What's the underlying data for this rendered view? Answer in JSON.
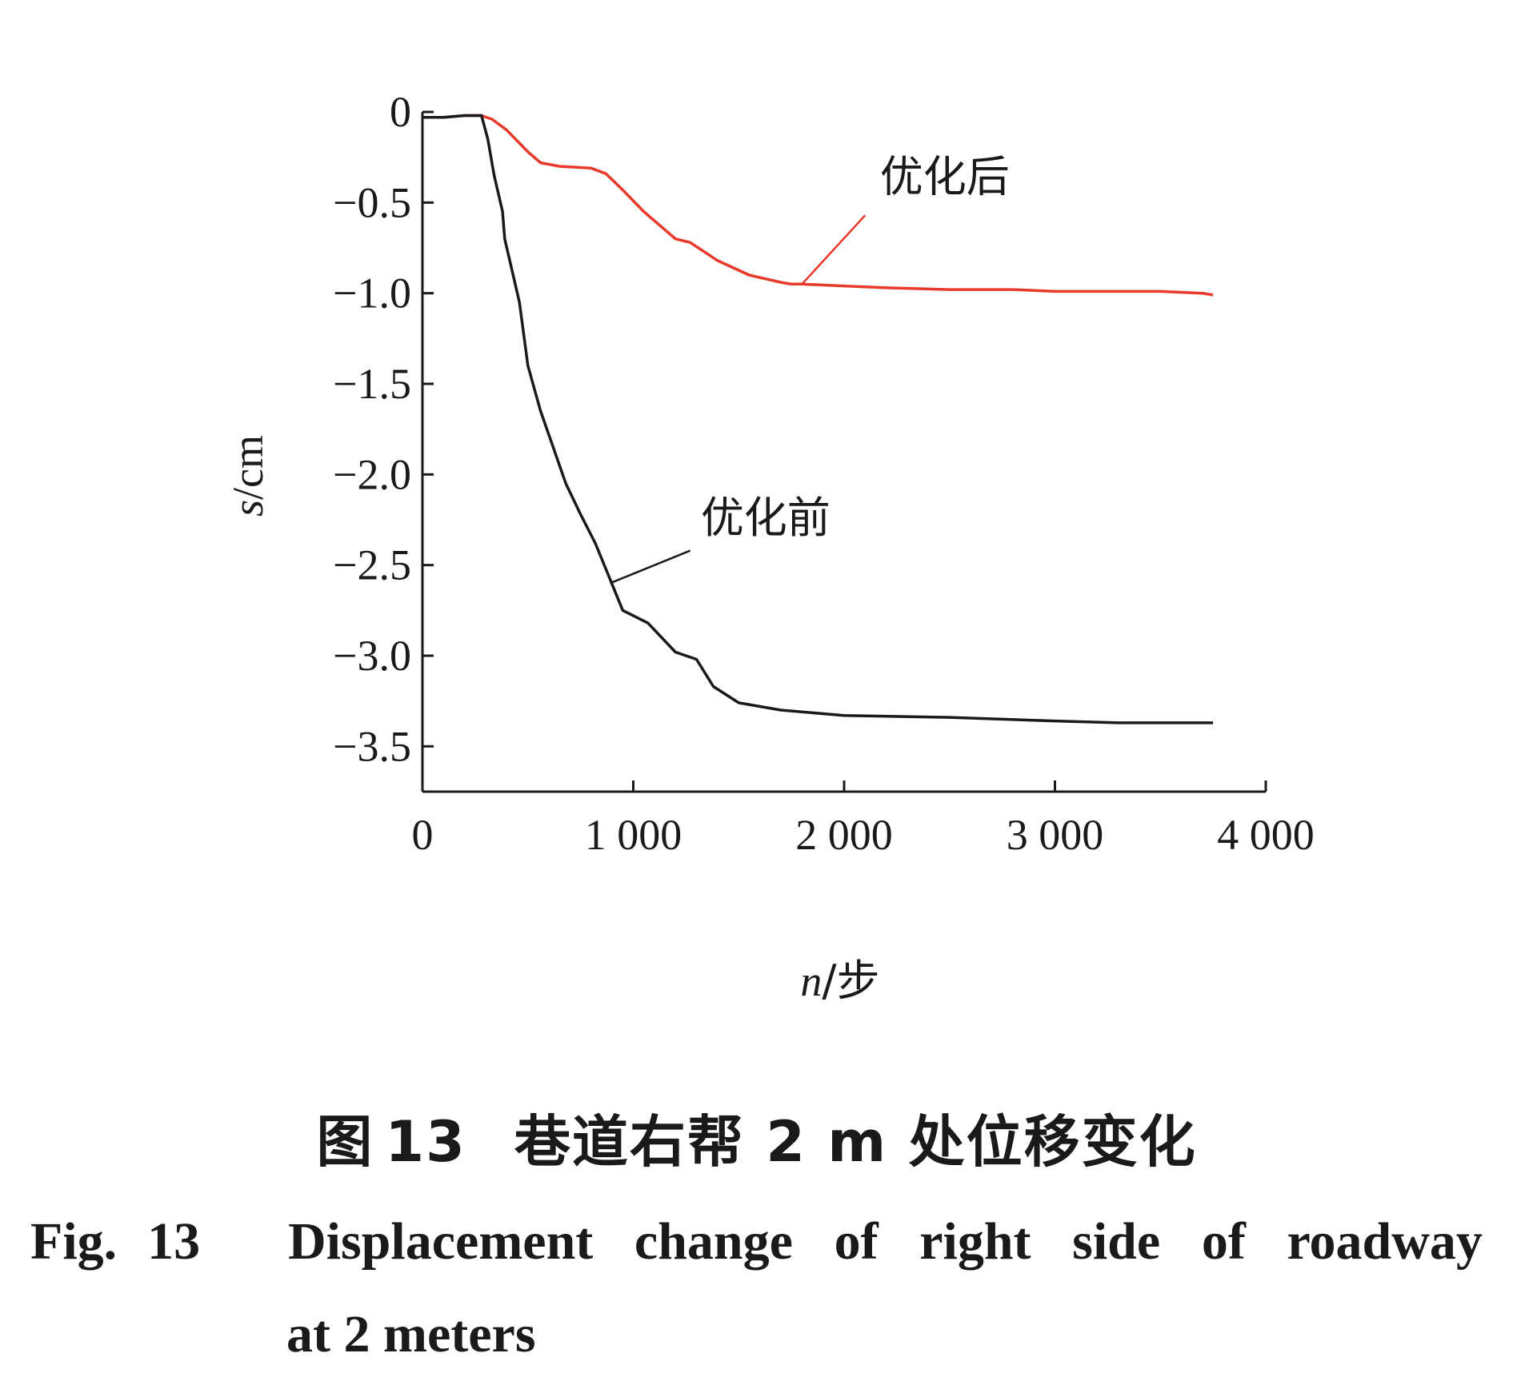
{
  "chart_data": {
    "type": "line",
    "xlabel_var": "n",
    "xlabel_unit": "/步",
    "ylabel_var": "s",
    "ylabel_unit": "/cm",
    "xlim": [
      0,
      4000
    ],
    "ylim": [
      -3.75,
      0
    ],
    "x_ticks": [
      0,
      1000,
      2000,
      3000,
      4000
    ],
    "x_tick_labels": [
      "0",
      "1 000",
      "2 000",
      "3 000",
      "4 000"
    ],
    "y_ticks": [
      0,
      -0.5,
      -1.0,
      -1.5,
      -2.0,
      -2.5,
      -3.0,
      -3.5
    ],
    "y_tick_labels": [
      "0",
      "−0.5",
      "−1.0",
      "−1.5",
      "−2.0",
      "−2.5",
      "−3.0",
      "−3.5"
    ],
    "grid": false,
    "series": [
      {
        "name": "优化后",
        "color": "#e8392a",
        "x": [
          0,
          100,
          200,
          280,
          330,
          400,
          500,
          560,
          650,
          800,
          870,
          950,
          1050,
          1150,
          1200,
          1270,
          1400,
          1550,
          1700,
          1750,
          1800,
          2000,
          2200,
          2500,
          2800,
          3000,
          3300,
          3500,
          3700,
          3750
        ],
        "y": [
          -0.03,
          -0.03,
          -0.02,
          -0.02,
          -0.04,
          -0.1,
          -0.22,
          -0.28,
          -0.3,
          -0.31,
          -0.34,
          -0.43,
          -0.55,
          -0.65,
          -0.7,
          -0.72,
          -0.82,
          -0.9,
          -0.94,
          -0.95,
          -0.95,
          -0.96,
          -0.97,
          -0.98,
          -0.98,
          -0.99,
          -0.99,
          -0.99,
          -1.0,
          -1.01
        ]
      },
      {
        "name": "优化前",
        "color": "#1a1a1a",
        "x": [
          0,
          100,
          200,
          280,
          310,
          340,
          380,
          390,
          420,
          460,
          500,
          560,
          620,
          680,
          750,
          820,
          880,
          950,
          1070,
          1200,
          1300,
          1380,
          1500,
          1700,
          2000,
          2500,
          3000,
          3300,
          3750
        ],
        "y": [
          -0.03,
          -0.03,
          -0.02,
          -0.02,
          -0.15,
          -0.35,
          -0.55,
          -0.7,
          -0.85,
          -1.05,
          -1.4,
          -1.65,
          -1.85,
          -2.05,
          -2.22,
          -2.38,
          -2.55,
          -2.75,
          -2.82,
          -2.98,
          -3.02,
          -3.17,
          -3.26,
          -3.3,
          -3.33,
          -3.34,
          -3.36,
          -3.37,
          -3.37
        ]
      }
    ]
  },
  "caption": {
    "cn_prefix": "图",
    "cn_number": "13",
    "cn_text": "巷道右帮 2 m 处位移变化",
    "en_prefix": "Fig.",
    "en_number": "13",
    "en_words_line1": [
      "Displacement",
      "change",
      "of",
      "right",
      "side",
      "of",
      "roadway"
    ],
    "en_line2": "at 2 meters"
  }
}
